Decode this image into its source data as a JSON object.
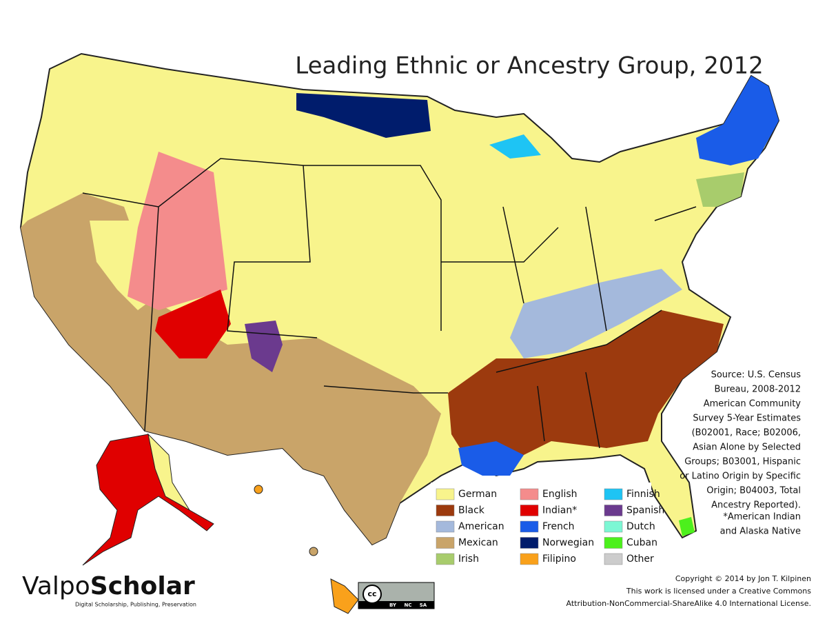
{
  "header": {
    "title": "Leading Ethnic or Ancestry Group, 2012"
  },
  "legend": [
    {
      "name": "German",
      "color": "#f8f48c"
    },
    {
      "name": "Black",
      "color": "#9c3a0e"
    },
    {
      "name": "American",
      "color": "#a4b9dc"
    },
    {
      "name": "Mexican",
      "color": "#c9a469"
    },
    {
      "name": "Irish",
      "color": "#a8cc6c"
    },
    {
      "name": "English",
      "color": "#f48c8c"
    },
    {
      "name": "Indian*",
      "color": "#e00000"
    },
    {
      "name": "French",
      "color": "#1a5ce8"
    },
    {
      "name": "Norwegian",
      "color": "#001c6c"
    },
    {
      "name": "Filipino",
      "color": "#f9a11b"
    },
    {
      "name": "Finnish",
      "color": "#1ec4f4"
    },
    {
      "name": "Spanish",
      "color": "#6b3a8e"
    },
    {
      "name": "Dutch",
      "color": "#7cf7d4"
    },
    {
      "name": "Cuban",
      "color": "#4cf01c"
    },
    {
      "name": "Other",
      "color": "#cccccc"
    }
  ],
  "source": [
    "Source:  U.S. Census",
    "Bureau, 2008-2012",
    "American Community",
    "Survey 5-Year Estimates",
    "(B02001, Race; B02006,",
    "Asian Alone by Selected",
    "Groups; B03001, Hispanic",
    "or Latino Origin by Specific",
    "Origin; B04003, Total",
    "Ancestry Reported)."
  ],
  "footnote": [
    "*American Indian",
    "and Alaska Native"
  ],
  "copyright": [
    "Copyright © 2014 by Jon T. Kilpinen",
    "This work is licensed under a Creative Commons",
    "Attribution-NonCommercial-ShareAlike 4.0 International License."
  ],
  "logo": {
    "part1": "Valpo",
    "part2": "Scholar",
    "tagline": "Digital Scholarship, Publishing, Preservation"
  },
  "badge": {
    "cc": "cc",
    "terms": [
      "BY",
      "NC",
      "SA"
    ]
  }
}
